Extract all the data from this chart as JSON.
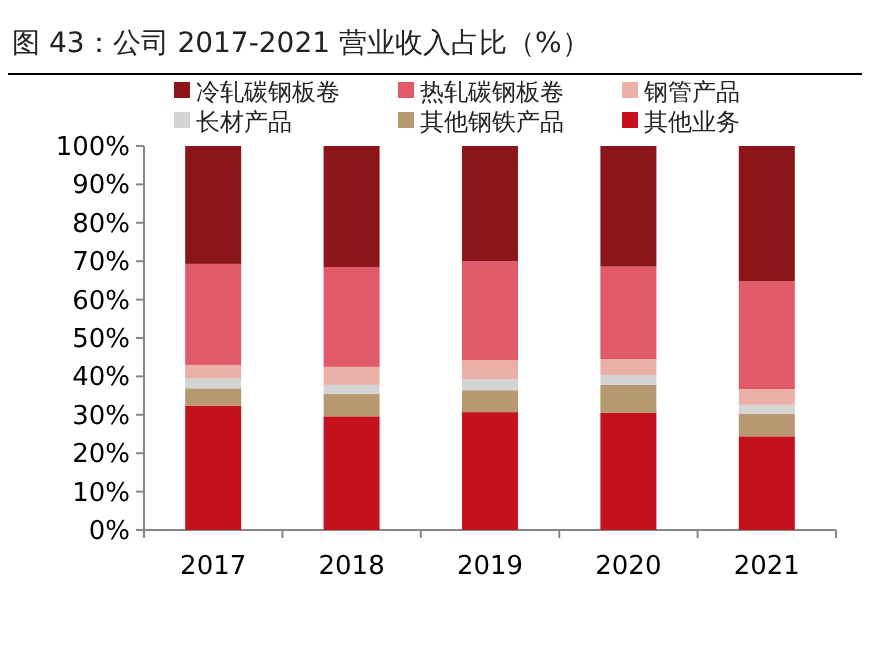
{
  "chart_data": {
    "type": "bar",
    "stacked": true,
    "title": "图 43：公司 2017-2021 营业收入占比（%）",
    "categories": [
      "2017",
      "2018",
      "2019",
      "2020",
      "2021"
    ],
    "series": [
      {
        "name": "其他业务",
        "color": "#c5101e",
        "values": [
          32.4,
          29.6,
          30.7,
          30.5,
          24.4
        ]
      },
      {
        "name": "其他钢铁产品",
        "color": "#b89870",
        "values": [
          4.5,
          5.8,
          5.7,
          7.3,
          5.9
        ]
      },
      {
        "name": "长材产品",
        "color": "#d4d4d4",
        "values": [
          2.6,
          2.4,
          2.9,
          2.6,
          2.3
        ]
      },
      {
        "name": "钢管产品",
        "color": "#eab0a8",
        "values": [
          3.5,
          4.7,
          4.9,
          4.1,
          4.1
        ]
      },
      {
        "name": "热轧碳钢板卷",
        "color": "#e05a6a",
        "values": [
          26.3,
          26.0,
          25.8,
          24.1,
          28.1
        ]
      },
      {
        "name": "冷轧碳钢板卷",
        "color": "#8b1518",
        "values": [
          30.7,
          31.5,
          30.0,
          31.4,
          35.2
        ]
      }
    ],
    "ylim": [
      0,
      100
    ],
    "yticks": [
      {
        "value": 0,
        "label": "0%"
      },
      {
        "value": 10,
        "label": "10%"
      },
      {
        "value": 20,
        "label": "20%"
      },
      {
        "value": 30,
        "label": "30%"
      },
      {
        "value": 40,
        "label": "40%"
      },
      {
        "value": 50,
        "label": "50%"
      },
      {
        "value": 60,
        "label": "60%"
      },
      {
        "value": 70,
        "label": "70%"
      },
      {
        "value": 80,
        "label": "80%"
      },
      {
        "value": 90,
        "label": "90%"
      },
      {
        "value": 100,
        "label": "100%"
      }
    ],
    "grid": false,
    "legend": "top"
  }
}
